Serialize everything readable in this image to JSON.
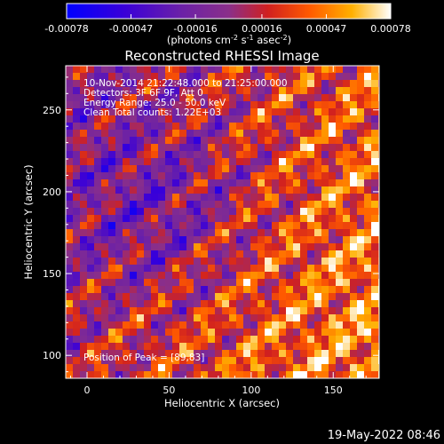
{
  "chart_data": {
    "type": "heatmap",
    "title": "Reconstructed RHESSI Image",
    "xlabel": "Heliocentric X (arcsec)",
    "ylabel": "Heliocentric Y (arcsec)",
    "xlim": [
      -13,
      178
    ],
    "ylim": [
      86,
      277
    ],
    "x_ticks": [
      0,
      50,
      100,
      150
    ],
    "y_ticks": [
      100,
      150,
      200,
      250
    ],
    "colorbar": {
      "min": -0.00078,
      "max": 0.00078,
      "ticks": [
        "-0.00078",
        "-0.00047",
        "-0.00016",
        "0.00016",
        "0.00047",
        "0.00078"
      ],
      "unit_text": "(photons cm",
      "unit_sup1": "-2",
      "unit_mid1": " s",
      "unit_sup2": "-1",
      "unit_mid2": " asec",
      "unit_sup3": "-2",
      "unit_end": ")"
    },
    "annotations": [
      "10-Nov-2014 21:22:48.000 to 21:25:00.000",
      "Detectors: 3F 6F 9F, Att 0",
      "Energy Range: 25.0 - 50.0 keV",
      "Clean     Total counts: 1.22E+03"
    ],
    "peak_label": "Position of Peak = [89,83]",
    "grid": false
  },
  "footer_timestamp": "19-May-2022 08:46"
}
